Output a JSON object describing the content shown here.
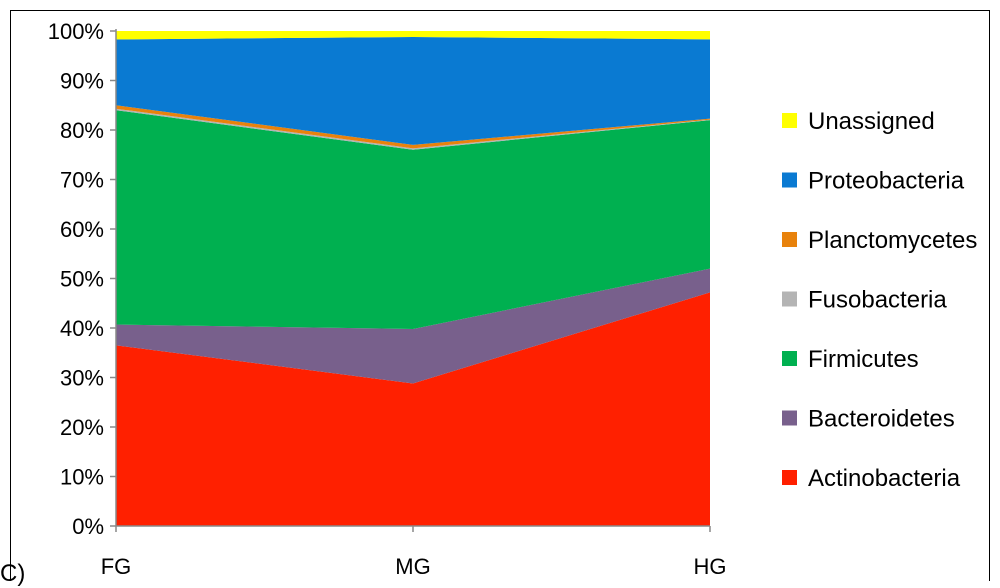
{
  "chart_data": {
    "type": "area",
    "stacked": true,
    "percent": true,
    "categories": [
      "FG",
      "MG",
      "HG"
    ],
    "y_ticks": [
      "0%",
      "10%",
      "20%",
      "30%",
      "40%",
      "50%",
      "60%",
      "70%",
      "80%",
      "90%",
      "100%"
    ],
    "ylim": [
      0,
      100
    ],
    "grid": false,
    "legend_position": "right",
    "series": [
      {
        "name": "Actinobacteria",
        "values": [
          36.5,
          28.8,
          47.2
        ],
        "color": "#ff2000"
      },
      {
        "name": "Bacteroidetes",
        "values": [
          4.2,
          11.0,
          4.8
        ],
        "color": "#78608c"
      },
      {
        "name": "Firmicutes",
        "values": [
          43.3,
          36.2,
          30.0
        ],
        "color": "#00b050"
      },
      {
        "name": "Fusobacteria",
        "values": [
          0.3,
          0.3,
          0.1
        ],
        "color": "#b4b4b4"
      },
      {
        "name": "Planctomycetes",
        "values": [
          0.7,
          0.7,
          0.2
        ],
        "color": "#e8820c"
      },
      {
        "name": "Proteobacteria",
        "values": [
          13.3,
          21.8,
          16.0
        ],
        "color": "#0a7ad2"
      },
      {
        "name": "Unassigned",
        "values": [
          1.7,
          1.2,
          1.7
        ],
        "color": "#ffff00"
      }
    ]
  },
  "fragment_text": "C)"
}
